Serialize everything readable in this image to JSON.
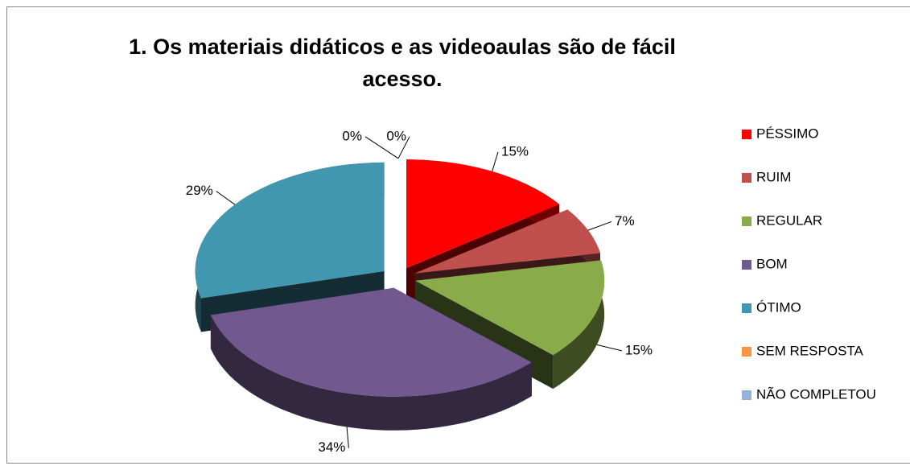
{
  "chart_data": {
    "type": "pie3d",
    "title": "1. Os materiais didáticos e as videoaulas são de fácil acesso.",
    "categories": [
      "PÉSSIMO",
      "RUIM",
      "REGULAR",
      "BOM",
      "ÓTIMO",
      "SEM RESPOSTA",
      "NÃO COMPLETOU"
    ],
    "values": [
      15,
      7,
      15,
      34,
      29,
      0,
      0
    ],
    "value_labels": [
      "15%",
      "7%",
      "15%",
      "34%",
      "29%",
      "0%",
      "0%"
    ],
    "colors": [
      "#ff0000",
      "#c0504d",
      "#8aab4a",
      "#71588f",
      "#4197b0",
      "#f79646",
      "#95b3d7"
    ],
    "legend": "right"
  }
}
